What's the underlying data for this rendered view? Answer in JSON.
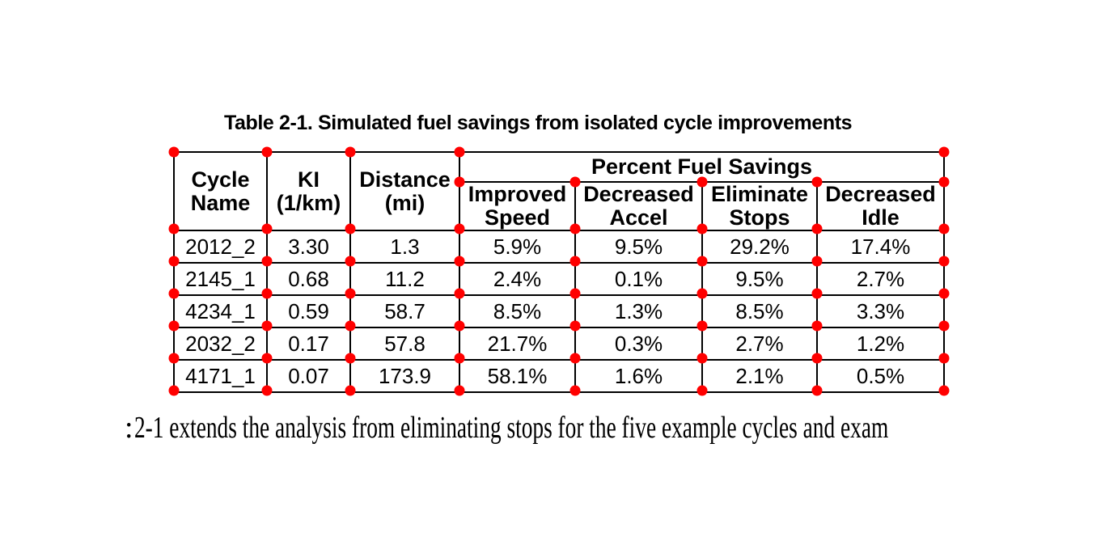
{
  "page": {
    "title": "Table 2-1. Simulated fuel savings from isolated cycle improvements",
    "footer_fragment": ":",
    "footer_text": "2-1 extends the analysis from eliminating stops for the five example cycles and exam"
  },
  "colors": {
    "marker": "#ff0000",
    "grid_lines": "#000000",
    "text": "#000000",
    "background": "#ffffff"
  },
  "table": {
    "headers": {
      "cycle": "Cycle\nName",
      "ki": "KI\n(1/km)",
      "distance": "Distance\n(mi)",
      "group": "Percent Fuel Savings",
      "sub": [
        "Improved\nSpeed",
        "Decreased\nAccel",
        "Eliminate\nStops",
        "Decreased\nIdle"
      ]
    },
    "rows": [
      [
        "2012_2",
        "3.30",
        "1.3",
        "5.9%",
        "9.5%",
        "29.2%",
        "17.4%"
      ],
      [
        "2145_1",
        "0.68",
        "11.2",
        "2.4%",
        "0.1%",
        "9.5%",
        "2.7%"
      ],
      [
        "4234_1",
        "0.59",
        "58.7",
        "8.5%",
        "1.3%",
        "8.5%",
        "3.3%"
      ],
      [
        "2032_2",
        "0.17",
        "57.8",
        "21.7%",
        "0.3%",
        "2.7%",
        "1.2%"
      ],
      [
        "4171_1",
        "0.07",
        "173.9",
        "58.1%",
        "1.6%",
        "2.1%",
        "0.5%"
      ]
    ]
  },
  "chart_data": {
    "type": "table",
    "title": "Table 2-1. Simulated fuel savings from isolated cycle improvements",
    "column_group": {
      "label": "Percent Fuel Savings",
      "columns": [
        "Improved Speed",
        "Decreased Accel",
        "Eliminate Stops",
        "Decreased Idle"
      ]
    },
    "columns": [
      "Cycle Name",
      "KI (1/km)",
      "Distance (mi)",
      "Improved Speed",
      "Decreased Accel",
      "Eliminate Stops",
      "Decreased Idle"
    ],
    "rows": [
      [
        "2012_2",
        3.3,
        1.3,
        "5.9%",
        "9.5%",
        "29.2%",
        "17.4%"
      ],
      [
        "2145_1",
        0.68,
        11.2,
        "2.4%",
        "0.1%",
        "9.5%",
        "2.7%"
      ],
      [
        "4234_1",
        0.59,
        58.7,
        "8.5%",
        "1.3%",
        "8.5%",
        "3.3%"
      ],
      [
        "2032_2",
        0.17,
        57.8,
        "21.7%",
        "0.3%",
        "2.7%",
        "1.2%"
      ],
      [
        "4171_1",
        0.07,
        173.9,
        "58.1%",
        "1.6%",
        "2.1%",
        "0.5%"
      ]
    ]
  }
}
